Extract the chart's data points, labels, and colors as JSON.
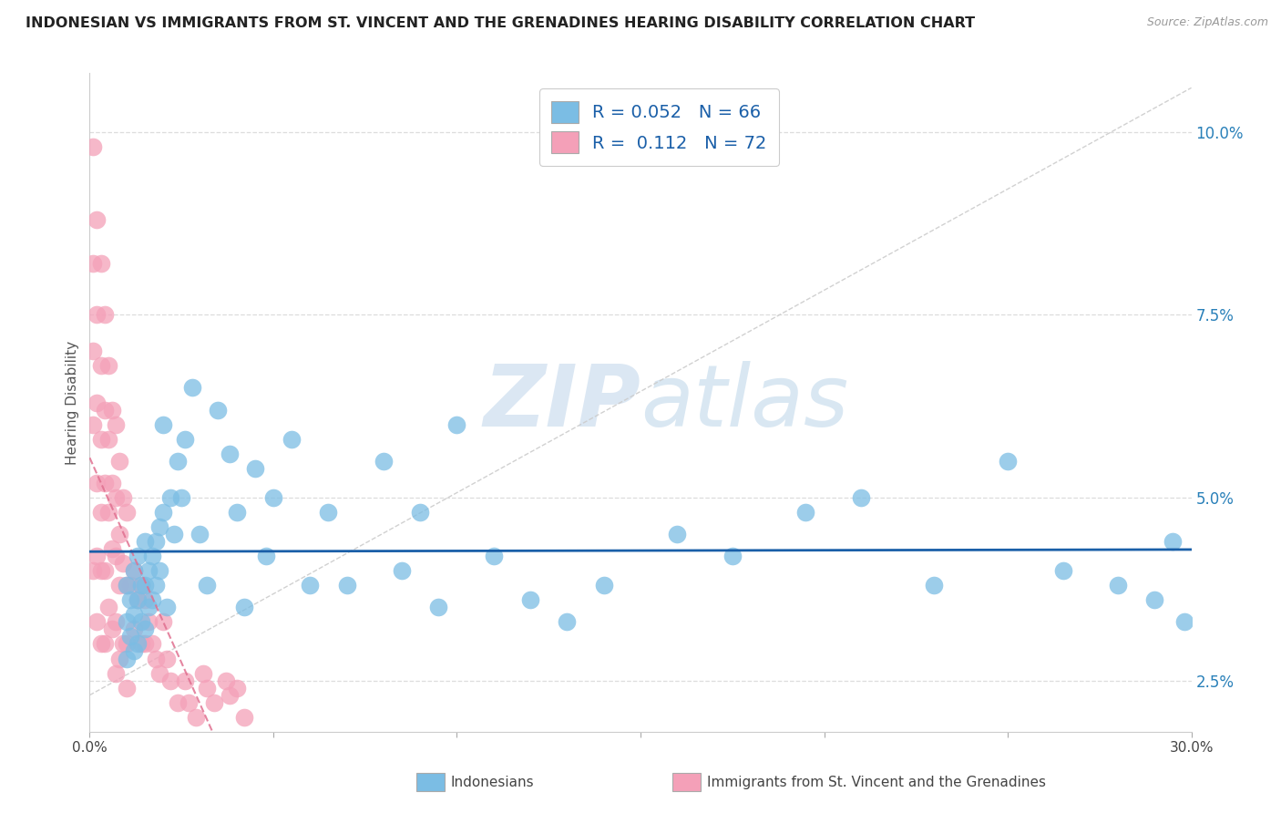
{
  "title": "INDONESIAN VS IMMIGRANTS FROM ST. VINCENT AND THE GRENADINES HEARING DISABILITY CORRELATION CHART",
  "source": "Source: ZipAtlas.com",
  "ylabel": "Hearing Disability",
  "r_blue": 0.052,
  "n_blue": 66,
  "r_pink": 0.112,
  "n_pink": 72,
  "xlim": [
    0.0,
    0.3
  ],
  "ylim": [
    0.018,
    0.108
  ],
  "xticks": [
    0.0,
    0.05,
    0.1,
    0.15,
    0.2,
    0.25,
    0.3
  ],
  "xticklabels": [
    "0.0%",
    "",
    "",
    "",
    "",
    "",
    "30.0%"
  ],
  "yticks_right": [
    0.025,
    0.05,
    0.075,
    0.1
  ],
  "yticklabels_right": [
    "2.5%",
    "5.0%",
    "7.5%",
    "10.0%"
  ],
  "blue_color": "#7bbde4",
  "pink_color": "#f4a0b8",
  "blue_line_color": "#1a5fa8",
  "pink_line_color": "#e07090",
  "ref_line_color": "#cccccc",
  "watermark_zip": "ZIP",
  "watermark_atlas": "atlas",
  "background_color": "#ffffff",
  "grid_color": "#dddddd",
  "blue_scatter_x": [
    0.01,
    0.01,
    0.01,
    0.011,
    0.011,
    0.012,
    0.012,
    0.012,
    0.013,
    0.013,
    0.013,
    0.014,
    0.014,
    0.015,
    0.015,
    0.015,
    0.016,
    0.016,
    0.017,
    0.017,
    0.018,
    0.018,
    0.019,
    0.019,
    0.02,
    0.02,
    0.021,
    0.022,
    0.023,
    0.024,
    0.025,
    0.026,
    0.028,
    0.03,
    0.032,
    0.035,
    0.038,
    0.04,
    0.042,
    0.045,
    0.048,
    0.05,
    0.055,
    0.06,
    0.065,
    0.07,
    0.08,
    0.085,
    0.09,
    0.095,
    0.1,
    0.11,
    0.12,
    0.13,
    0.14,
    0.16,
    0.175,
    0.195,
    0.21,
    0.23,
    0.25,
    0.265,
    0.28,
    0.29,
    0.295,
    0.298
  ],
  "blue_scatter_y": [
    0.038,
    0.033,
    0.028,
    0.036,
    0.031,
    0.04,
    0.034,
    0.029,
    0.042,
    0.036,
    0.03,
    0.038,
    0.033,
    0.044,
    0.038,
    0.032,
    0.04,
    0.035,
    0.042,
    0.036,
    0.044,
    0.038,
    0.046,
    0.04,
    0.06,
    0.048,
    0.035,
    0.05,
    0.045,
    0.055,
    0.05,
    0.058,
    0.065,
    0.045,
    0.038,
    0.062,
    0.056,
    0.048,
    0.035,
    0.054,
    0.042,
    0.05,
    0.058,
    0.038,
    0.048,
    0.038,
    0.055,
    0.04,
    0.048,
    0.035,
    0.06,
    0.042,
    0.036,
    0.033,
    0.038,
    0.045,
    0.042,
    0.048,
    0.05,
    0.038,
    0.055,
    0.04,
    0.038,
    0.036,
    0.044,
    0.033
  ],
  "pink_scatter_x": [
    0.001,
    0.001,
    0.001,
    0.001,
    0.001,
    0.002,
    0.002,
    0.002,
    0.002,
    0.002,
    0.002,
    0.003,
    0.003,
    0.003,
    0.003,
    0.003,
    0.003,
    0.004,
    0.004,
    0.004,
    0.004,
    0.004,
    0.005,
    0.005,
    0.005,
    0.005,
    0.006,
    0.006,
    0.006,
    0.006,
    0.007,
    0.007,
    0.007,
    0.007,
    0.007,
    0.008,
    0.008,
    0.008,
    0.008,
    0.009,
    0.009,
    0.009,
    0.01,
    0.01,
    0.01,
    0.01,
    0.011,
    0.012,
    0.012,
    0.013,
    0.014,
    0.014,
    0.015,
    0.015,
    0.016,
    0.017,
    0.018,
    0.019,
    0.02,
    0.021,
    0.022,
    0.024,
    0.026,
    0.027,
    0.029,
    0.031,
    0.032,
    0.034,
    0.037,
    0.038,
    0.04,
    0.042
  ],
  "pink_scatter_y": [
    0.098,
    0.082,
    0.07,
    0.06,
    0.04,
    0.088,
    0.075,
    0.063,
    0.052,
    0.042,
    0.033,
    0.082,
    0.068,
    0.058,
    0.048,
    0.04,
    0.03,
    0.075,
    0.062,
    0.052,
    0.04,
    0.03,
    0.068,
    0.058,
    0.048,
    0.035,
    0.062,
    0.052,
    0.043,
    0.032,
    0.06,
    0.05,
    0.042,
    0.033,
    0.026,
    0.055,
    0.045,
    0.038,
    0.028,
    0.05,
    0.041,
    0.03,
    0.048,
    0.038,
    0.03,
    0.024,
    0.038,
    0.04,
    0.032,
    0.036,
    0.038,
    0.03,
    0.036,
    0.03,
    0.033,
    0.03,
    0.028,
    0.026,
    0.033,
    0.028,
    0.025,
    0.022,
    0.025,
    0.022,
    0.02,
    0.026,
    0.024,
    0.022,
    0.025,
    0.023,
    0.024,
    0.02
  ]
}
